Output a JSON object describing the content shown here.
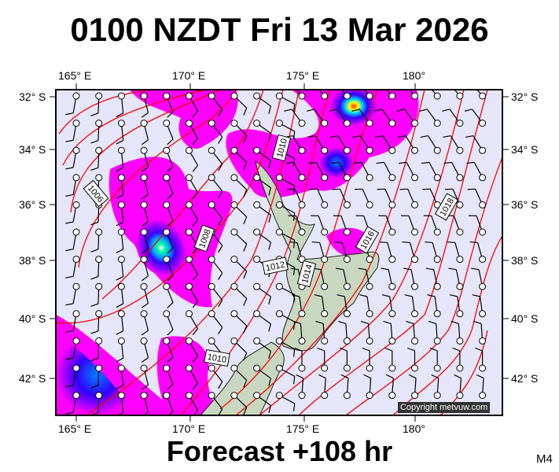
{
  "title": "0100 NZDT Fri 13 Mar 2026",
  "footer": "Forecast +108 hr",
  "model_tag": "M4",
  "copyright": "Copyright metvuw.com",
  "lon_labels": [
    "165° E",
    "170° E",
    "175° E",
    "180°"
  ],
  "lat_labels": [
    "32° S",
    "34° S",
    "36° S",
    "38° S",
    "40° S",
    "42° S"
  ],
  "isobar_labels": [
    "1006",
    "1008",
    "1008",
    "1010",
    "1010",
    "1012",
    "1014",
    "1016",
    "1018"
  ],
  "colors": {
    "background": "#e6e6fa",
    "isobar": "#ff0000",
    "rain_light": "#ff00ff",
    "rain_mid": "#4b00ff",
    "rain_heavy": "#00e0ff",
    "land": "#c8d8c0"
  }
}
